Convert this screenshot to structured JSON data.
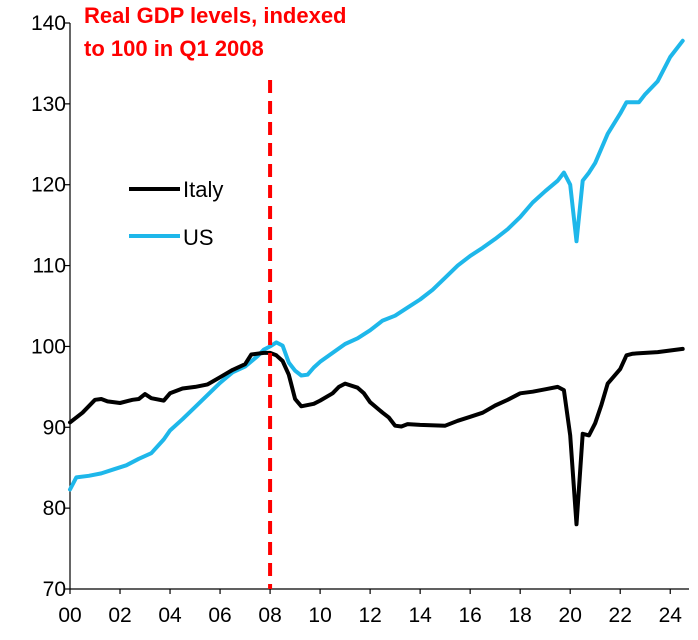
{
  "chart_data": {
    "type": "line",
    "title_lines": [
      "Real GDP levels, indexed",
      "to 100 in Q1 2008"
    ],
    "xlabel": "",
    "ylabel": "",
    "xlim": [
      2000,
      2024.75
    ],
    "ylim": [
      70,
      140
    ],
    "x_ticks": [
      {
        "value": 2000,
        "label": "00"
      },
      {
        "value": 2002,
        "label": "02"
      },
      {
        "value": 2004,
        "label": "04"
      },
      {
        "value": 2006,
        "label": "06"
      },
      {
        "value": 2008,
        "label": "08"
      },
      {
        "value": 2010,
        "label": "10"
      },
      {
        "value": 2012,
        "label": "12"
      },
      {
        "value": 2014,
        "label": "14"
      },
      {
        "value": 2016,
        "label": "16"
      },
      {
        "value": 2018,
        "label": "18"
      },
      {
        "value": 2020,
        "label": "20"
      },
      {
        "value": 2022,
        "label": "22"
      },
      {
        "value": 2024,
        "label": "24"
      }
    ],
    "y_ticks": [
      70,
      80,
      90,
      100,
      110,
      120,
      130,
      140
    ],
    "grid": false,
    "legend_position": "left-middle",
    "reference_line": {
      "x": 2008,
      "color": "#ff0000",
      "style": "dashed"
    },
    "series": [
      {
        "name": "Italy",
        "color": "#000000",
        "points": [
          [
            2000.0,
            90.6
          ],
          [
            2000.5,
            91.8
          ],
          [
            2001.0,
            93.4
          ],
          [
            2001.25,
            93.5
          ],
          [
            2001.5,
            93.2
          ],
          [
            2002.0,
            93.0
          ],
          [
            2002.5,
            93.4
          ],
          [
            2002.75,
            93.5
          ],
          [
            2003.0,
            94.1
          ],
          [
            2003.25,
            93.6
          ],
          [
            2003.75,
            93.3
          ],
          [
            2004.0,
            94.2
          ],
          [
            2004.5,
            94.8
          ],
          [
            2005.0,
            95.0
          ],
          [
            2005.5,
            95.3
          ],
          [
            2006.0,
            96.2
          ],
          [
            2006.5,
            97.1
          ],
          [
            2007.0,
            97.8
          ],
          [
            2007.25,
            99.0
          ],
          [
            2007.75,
            99.2
          ],
          [
            2008.0,
            99.2
          ],
          [
            2008.25,
            98.9
          ],
          [
            2008.5,
            98.2
          ],
          [
            2008.75,
            96.5
          ],
          [
            2009.0,
            93.5
          ],
          [
            2009.25,
            92.6
          ],
          [
            2009.75,
            92.9
          ],
          [
            2010.0,
            93.3
          ],
          [
            2010.5,
            94.2
          ],
          [
            2010.75,
            95.0
          ],
          [
            2011.0,
            95.4
          ],
          [
            2011.5,
            94.9
          ],
          [
            2011.75,
            94.2
          ],
          [
            2012.0,
            93.1
          ],
          [
            2012.5,
            91.8
          ],
          [
            2012.75,
            91.2
          ],
          [
            2013.0,
            90.2
          ],
          [
            2013.25,
            90.1
          ],
          [
            2013.5,
            90.4
          ],
          [
            2014.0,
            90.3
          ],
          [
            2015.0,
            90.2
          ],
          [
            2015.5,
            90.8
          ],
          [
            2016.0,
            91.3
          ],
          [
            2016.5,
            91.8
          ],
          [
            2017.0,
            92.7
          ],
          [
            2017.5,
            93.4
          ],
          [
            2018.0,
            94.2
          ],
          [
            2018.5,
            94.4
          ],
          [
            2019.0,
            94.7
          ],
          [
            2019.5,
            95.0
          ],
          [
            2019.75,
            94.6
          ],
          [
            2020.0,
            89.0
          ],
          [
            2020.25,
            78.0
          ],
          [
            2020.5,
            89.2
          ],
          [
            2020.75,
            89.0
          ],
          [
            2021.0,
            90.5
          ],
          [
            2021.25,
            92.8
          ],
          [
            2021.5,
            95.4
          ],
          [
            2022.0,
            97.2
          ],
          [
            2022.25,
            98.9
          ],
          [
            2022.5,
            99.1
          ],
          [
            2023.0,
            99.2
          ],
          [
            2023.5,
            99.3
          ],
          [
            2024.0,
            99.5
          ],
          [
            2024.5,
            99.7
          ]
        ]
      },
      {
        "name": "US",
        "color": "#1eb7ea",
        "points": [
          [
            2000.0,
            82.3
          ],
          [
            2000.25,
            83.8
          ],
          [
            2000.75,
            84.0
          ],
          [
            2001.25,
            84.3
          ],
          [
            2001.75,
            84.8
          ],
          [
            2002.25,
            85.3
          ],
          [
            2002.75,
            86.1
          ],
          [
            2003.25,
            86.8
          ],
          [
            2003.75,
            88.5
          ],
          [
            2004.0,
            89.6
          ],
          [
            2004.5,
            91.0
          ],
          [
            2005.0,
            92.5
          ],
          [
            2005.5,
            94.0
          ],
          [
            2006.0,
            95.5
          ],
          [
            2006.5,
            96.8
          ],
          [
            2007.0,
            97.5
          ],
          [
            2007.5,
            98.8
          ],
          [
            2007.75,
            99.6
          ],
          [
            2008.0,
            100.0
          ],
          [
            2008.25,
            100.5
          ],
          [
            2008.5,
            100.1
          ],
          [
            2008.75,
            98.0
          ],
          [
            2009.0,
            97.0
          ],
          [
            2009.25,
            96.4
          ],
          [
            2009.5,
            96.5
          ],
          [
            2009.75,
            97.4
          ],
          [
            2010.0,
            98.1
          ],
          [
            2010.5,
            99.2
          ],
          [
            2011.0,
            100.3
          ],
          [
            2011.5,
            101.0
          ],
          [
            2012.0,
            102.0
          ],
          [
            2012.5,
            103.2
          ],
          [
            2013.0,
            103.8
          ],
          [
            2013.5,
            104.8
          ],
          [
            2014.0,
            105.8
          ],
          [
            2014.5,
            107.0
          ],
          [
            2015.0,
            108.5
          ],
          [
            2015.5,
            110.0
          ],
          [
            2016.0,
            111.2
          ],
          [
            2016.5,
            112.2
          ],
          [
            2017.0,
            113.3
          ],
          [
            2017.5,
            114.5
          ],
          [
            2018.0,
            116.0
          ],
          [
            2018.5,
            117.8
          ],
          [
            2019.0,
            119.2
          ],
          [
            2019.5,
            120.5
          ],
          [
            2019.75,
            121.5
          ],
          [
            2020.0,
            120.0
          ],
          [
            2020.25,
            113.0
          ],
          [
            2020.5,
            120.5
          ],
          [
            2020.75,
            121.5
          ],
          [
            2021.0,
            122.7
          ],
          [
            2021.5,
            126.3
          ],
          [
            2022.0,
            128.8
          ],
          [
            2022.25,
            130.2
          ],
          [
            2022.75,
            130.2
          ],
          [
            2023.0,
            131.2
          ],
          [
            2023.5,
            132.8
          ],
          [
            2024.0,
            135.8
          ],
          [
            2024.5,
            137.8
          ]
        ]
      }
    ]
  }
}
